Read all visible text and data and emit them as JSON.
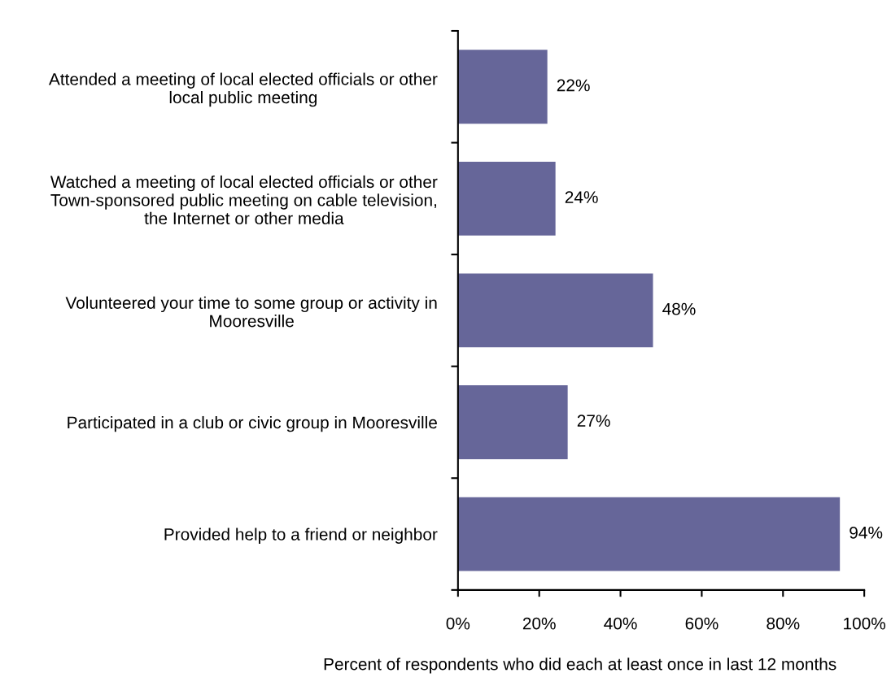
{
  "chart_data": {
    "type": "bar",
    "orientation": "horizontal",
    "xlabel": "Percent of respondents who did each at least once in last 12 months",
    "categories": [
      "Attended a meeting of local elected officials or other\nlocal public meeting",
      "Watched a meeting of local elected officials or other\nTown-sponsored public meeting on cable television,\nthe Internet or other media",
      "Volunteered your time to some group or activity in\nMooresville",
      "Participated in a club or civic group in Mooresville",
      "Provided help to a friend or neighbor"
    ],
    "values": [
      22,
      24,
      48,
      27,
      94
    ],
    "value_labels": [
      "22%",
      "24%",
      "48%",
      "27%",
      "94%"
    ],
    "color": "#666699",
    "xlim": [
      0,
      100
    ],
    "xticks": [
      {
        "value": 0,
        "label": "0%"
      },
      {
        "value": 20,
        "label": "20%"
      },
      {
        "value": 40,
        "label": "40%"
      },
      {
        "value": 60,
        "label": "60%"
      },
      {
        "value": 80,
        "label": "80%"
      },
      {
        "value": 100,
        "label": "100%"
      }
    ],
    "grid": false,
    "legend": false
  }
}
